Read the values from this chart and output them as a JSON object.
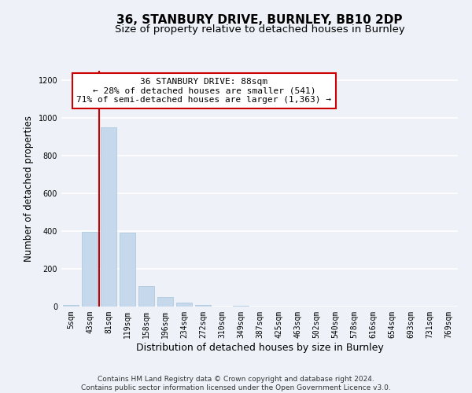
{
  "title": "36, STANBURY DRIVE, BURNLEY, BB10 2DP",
  "subtitle": "Size of property relative to detached houses in Burnley",
  "xlabel": "Distribution of detached houses by size in Burnley",
  "ylabel": "Number of detached properties",
  "bar_labels": [
    "5sqm",
    "43sqm",
    "81sqm",
    "119sqm",
    "158sqm",
    "196sqm",
    "234sqm",
    "272sqm",
    "310sqm",
    "349sqm",
    "387sqm",
    "425sqm",
    "463sqm",
    "502sqm",
    "540sqm",
    "578sqm",
    "616sqm",
    "654sqm",
    "693sqm",
    "731sqm",
    "769sqm"
  ],
  "bar_values": [
    10,
    395,
    950,
    390,
    107,
    52,
    22,
    7,
    0,
    3,
    0,
    0,
    0,
    0,
    0,
    0,
    0,
    0,
    0,
    0,
    0
  ],
  "bar_color": "#c6d9ec",
  "bar_edge_color": "#a8c4dc",
  "vline_color": "#cc0000",
  "vline_x_index": 2,
  "ylim": [
    0,
    1250
  ],
  "yticks": [
    0,
    200,
    400,
    600,
    800,
    1000,
    1200
  ],
  "annotation_title": "36 STANBURY DRIVE: 88sqm",
  "annotation_line1": "← 28% of detached houses are smaller (541)",
  "annotation_line2": "71% of semi-detached houses are larger (1,363) →",
  "annotation_box_color": "#ffffff",
  "annotation_box_edge": "#cc0000",
  "footer_line1": "Contains HM Land Registry data © Crown copyright and database right 2024.",
  "footer_line2": "Contains public sector information licensed under the Open Government Licence v3.0.",
  "bg_color": "#eef2f8",
  "plot_bg_color": "#eef2f8",
  "grid_color": "#ffffff",
  "title_fontsize": 11,
  "subtitle_fontsize": 9.5,
  "xlabel_fontsize": 9,
  "ylabel_fontsize": 8.5,
  "tick_fontsize": 7,
  "footer_fontsize": 6.5,
  "annotation_fontsize": 8
}
